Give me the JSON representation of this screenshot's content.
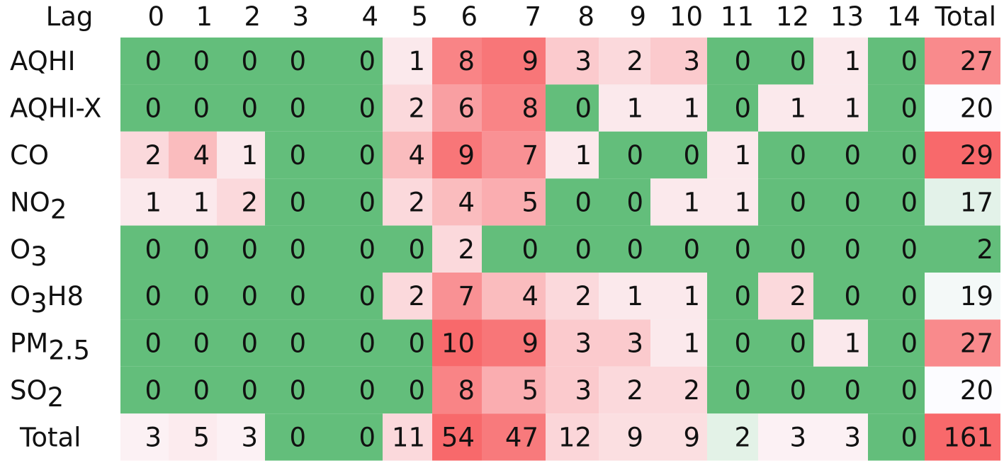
{
  "chart_data": {
    "type": "heatmap",
    "corner_label": "Lag",
    "columns": [
      "0",
      "1",
      "2",
      "3",
      "4",
      "5",
      "6",
      "7",
      "8",
      "9",
      "10",
      "11",
      "12",
      "13",
      "14",
      "Total"
    ],
    "rows": [
      {
        "label": "AQHI",
        "label_sub": "",
        "label_suffix": "",
        "values": [
          0,
          0,
          0,
          0,
          0,
          1,
          8,
          9,
          3,
          2,
          3,
          0,
          0,
          1,
          0,
          27
        ]
      },
      {
        "label": "AQHI-X",
        "label_sub": "",
        "label_suffix": "",
        "values": [
          0,
          0,
          0,
          0,
          0,
          2,
          6,
          8,
          0,
          1,
          1,
          0,
          1,
          1,
          0,
          20
        ]
      },
      {
        "label": "CO",
        "label_sub": "",
        "label_suffix": "",
        "values": [
          2,
          4,
          1,
          0,
          0,
          4,
          9,
          7,
          1,
          0,
          0,
          1,
          0,
          0,
          0,
          29
        ]
      },
      {
        "label": "NO",
        "label_sub": "2",
        "label_suffix": "",
        "values": [
          1,
          1,
          2,
          0,
          0,
          2,
          4,
          5,
          0,
          0,
          1,
          1,
          0,
          0,
          0,
          17
        ]
      },
      {
        "label": "O",
        "label_sub": "3",
        "label_suffix": "",
        "values": [
          0,
          0,
          0,
          0,
          0,
          0,
          2,
          0,
          0,
          0,
          0,
          0,
          0,
          0,
          0,
          2
        ]
      },
      {
        "label": "O",
        "label_sub": "3",
        "label_suffix": "H8",
        "values": [
          0,
          0,
          0,
          0,
          0,
          2,
          7,
          4,
          2,
          1,
          1,
          0,
          2,
          0,
          0,
          19
        ]
      },
      {
        "label": "PM",
        "label_sub": "2.5",
        "label_suffix": "",
        "values": [
          0,
          0,
          0,
          0,
          0,
          0,
          10,
          9,
          3,
          3,
          1,
          0,
          0,
          1,
          0,
          27
        ]
      },
      {
        "label": "SO",
        "label_sub": "2",
        "label_suffix": "",
        "values": [
          0,
          0,
          0,
          0,
          0,
          0,
          8,
          5,
          3,
          2,
          2,
          0,
          0,
          0,
          0,
          20
        ]
      },
      {
        "label": "Total",
        "label_sub": "",
        "label_suffix": "",
        "values": [
          3,
          5,
          3,
          0,
          0,
          11,
          54,
          47,
          12,
          9,
          9,
          2,
          3,
          3,
          0,
          161
        ]
      }
    ],
    "colors": {
      "zero": "#63be7b",
      "low": "#fcfcff",
      "high": "#f8696b",
      "below_mid": "#e3f2e7"
    }
  }
}
